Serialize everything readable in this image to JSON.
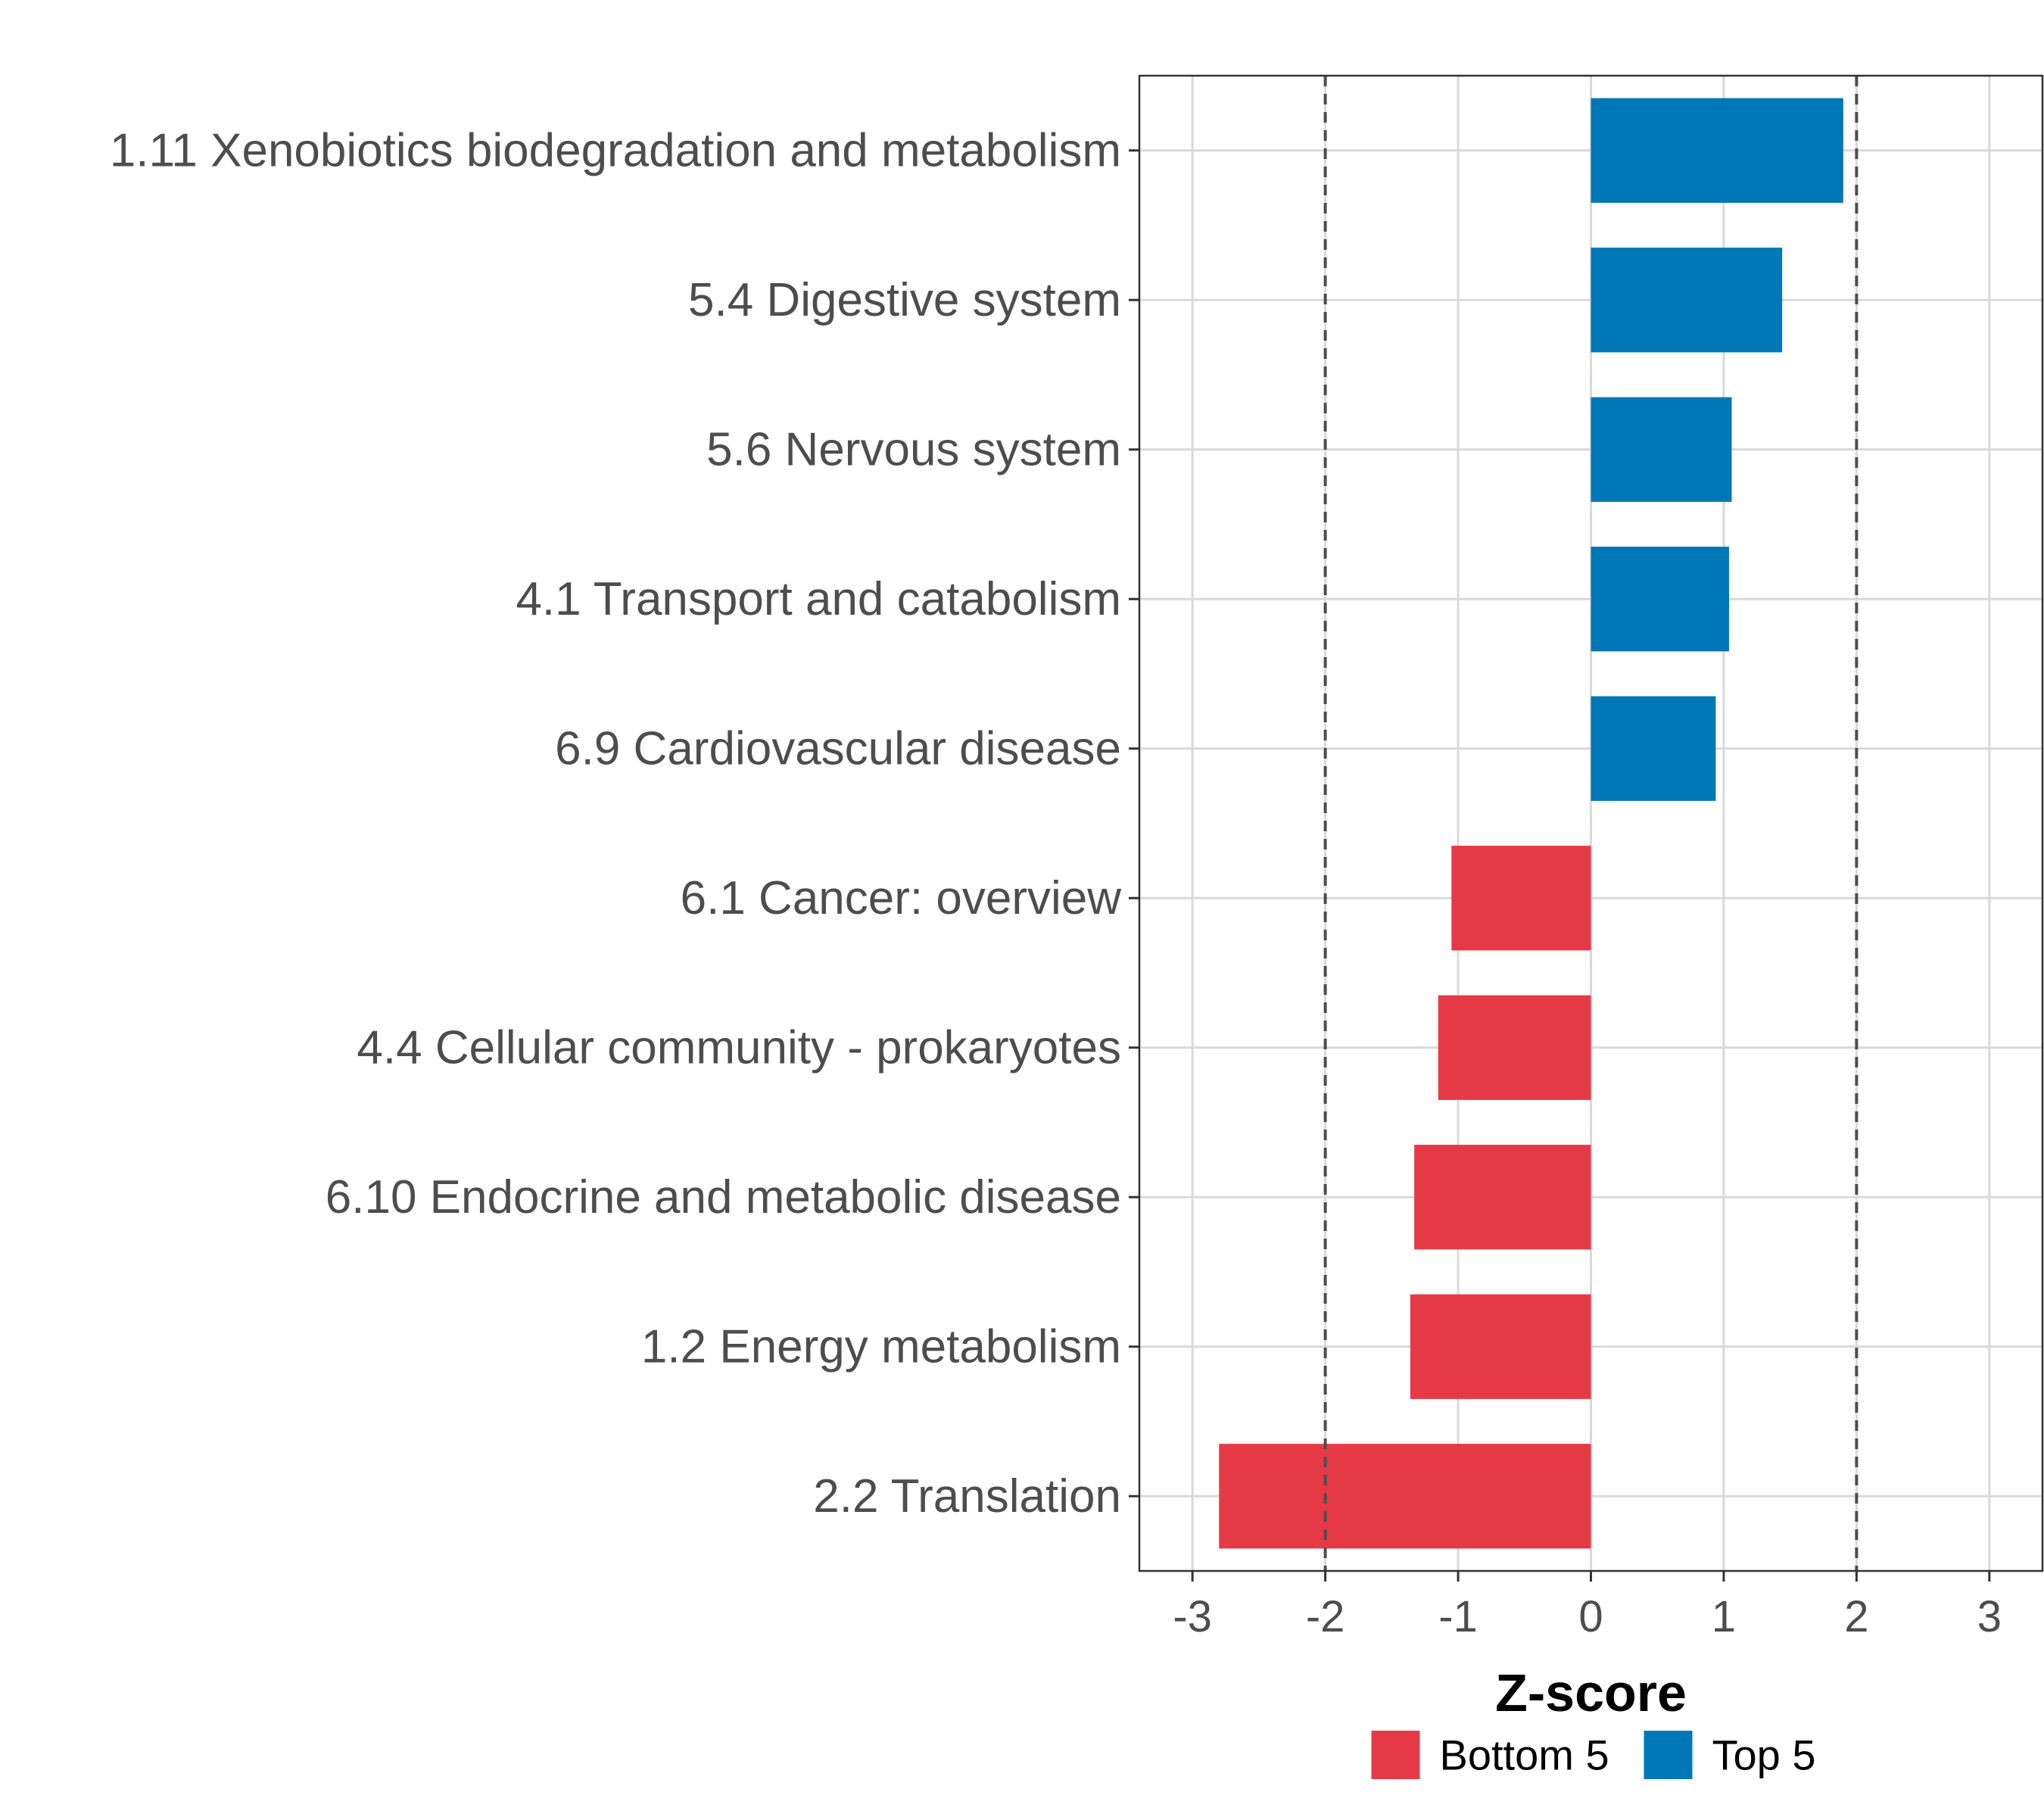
{
  "chart_data": {
    "type": "bar",
    "orientation": "horizontal",
    "xlabel": "Z-score",
    "xlim": [
      -3.4,
      3.4
    ],
    "xticks": [
      -3,
      -2,
      -1,
      0,
      1,
      2,
      3
    ],
    "xtick_labels": [
      "-3",
      "-2",
      "-1",
      "0",
      "1",
      "2",
      "3"
    ],
    "reference_lines": [
      -2,
      2
    ],
    "grid": true,
    "categories": [
      "1.11 Xenobiotics biodegradation and metabolism",
      "5.4 Digestive system",
      "5.6 Nervous system",
      "4.1 Transport and catabolism",
      "6.9 Cardiovascular disease",
      "6.1 Cancer: overview",
      "4.4 Cellular community - prokaryotes",
      "6.10 Endocrine and metabolic disease",
      "1.2 Energy metabolism",
      "2.2 Translation"
    ],
    "values": [
      1.9,
      1.44,
      1.06,
      1.04,
      0.94,
      -1.05,
      -1.15,
      -1.33,
      -1.36,
      -2.8
    ],
    "groups": [
      "Top 5",
      "Top 5",
      "Top 5",
      "Top 5",
      "Top 5",
      "Bottom 5",
      "Bottom 5",
      "Bottom 5",
      "Bottom 5",
      "Bottom 5"
    ],
    "legend": {
      "position": "bottom",
      "entries": [
        {
          "label": "Bottom 5",
          "color": "#e63946"
        },
        {
          "label": "Top 5",
          "color": "#0077b6"
        }
      ]
    },
    "colors": {
      "Top 5": "#0077b6",
      "Bottom 5": "#e63946"
    }
  }
}
